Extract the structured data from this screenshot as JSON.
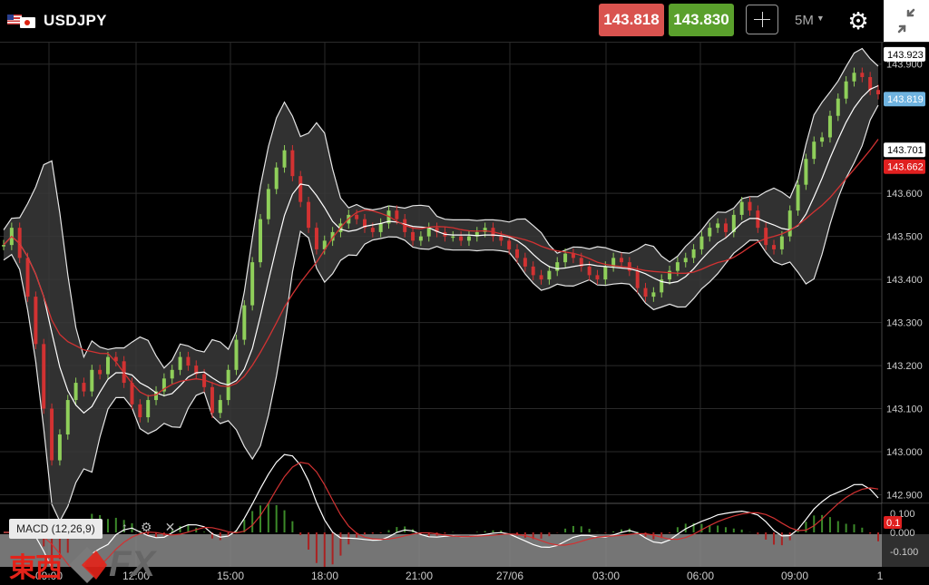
{
  "header": {
    "symbol": "USDJPY",
    "sell_price": "143.818",
    "buy_price": "143.830",
    "timeframe": "5M",
    "icons": [
      "us-flag-icon",
      "japan-flag-icon",
      "crosshair-icon",
      "settings-gear-icon",
      "collapse-icon"
    ]
  },
  "price_scale": {
    "ticks": [
      "142.900",
      "143.000",
      "143.100",
      "143.200",
      "143.300",
      "143.400",
      "143.500",
      "143.600",
      "143.900"
    ],
    "markers": [
      {
        "value": "143.923",
        "color": "#ffffff"
      },
      {
        "value": "143.819",
        "color": "#6fb3e0"
      },
      {
        "value": "143.701",
        "color": "#ffffff"
      },
      {
        "value": "143.662",
        "color": "#e02020"
      }
    ]
  },
  "time_axis": {
    "labels": [
      "15:00",
      "18:00",
      "21:00",
      "27/06",
      "03:00",
      "06:00",
      "09:00",
      "1"
    ],
    "partially_obscured_labels": [
      "09:00",
      "12:00"
    ]
  },
  "indicator": {
    "label": "MACD (12,26,9)",
    "scale": [
      "0.100",
      "0.000",
      "-0.100"
    ],
    "marker": {
      "value": "0.1",
      "color": "#e02020"
    }
  },
  "logo": {
    "kanji": "東西",
    "fx": "FX"
  },
  "chart_data": {
    "type": "candlestick",
    "ylim": [
      142.88,
      143.95
    ],
    "overlays": [
      "bollinger-bands",
      "moving-average"
    ],
    "indicator": "MACD (12,26,9)",
    "series": [
      {
        "name": "price",
        "values": [
          143.48,
          143.52,
          143.45,
          143.36,
          143.25,
          143.1,
          142.98,
          143.04,
          143.12,
          143.16,
          143.14,
          143.19,
          143.18,
          143.22,
          143.21,
          143.16,
          143.11,
          143.08,
          143.12,
          143.14,
          143.17,
          143.19,
          143.22,
          143.2,
          143.18,
          143.15,
          143.09,
          143.12,
          143.19,
          143.26,
          143.34,
          143.44,
          143.54,
          143.61,
          143.66,
          143.7,
          143.64,
          143.58,
          143.52,
          143.47,
          143.49,
          143.51,
          143.53,
          143.55,
          143.54,
          143.52,
          143.51,
          143.53,
          143.56,
          143.54,
          143.51,
          143.49,
          143.5,
          143.52,
          143.51,
          143.5,
          143.5,
          143.49,
          143.5,
          143.51,
          143.52,
          143.5,
          143.49,
          143.47,
          143.45,
          143.43,
          143.41,
          143.4,
          143.42,
          143.44,
          143.46,
          143.45,
          143.43,
          143.41,
          143.4,
          143.43,
          143.45,
          143.44,
          143.42,
          143.38,
          143.36,
          143.37,
          143.4,
          143.42,
          143.44,
          143.45,
          143.47,
          143.5,
          143.52,
          143.53,
          143.51,
          143.55,
          143.58,
          143.56,
          143.52,
          143.48,
          143.47,
          143.5,
          143.56,
          143.62,
          143.68,
          143.72,
          143.73,
          143.78,
          143.82,
          143.86,
          143.88,
          143.87,
          143.84,
          143.83
        ]
      }
    ],
    "time_labels": [
      "09:00",
      "12:00",
      "15:00",
      "18:00",
      "21:00",
      "27/06",
      "03:00",
      "06:00",
      "09:00",
      "1"
    ]
  },
  "colors": {
    "sell": "#d9534f",
    "buy": "#5aa02c",
    "ma_line": "#d23232",
    "candle_up": "#8fcf5a",
    "candle_down": "#d23232",
    "band_fill": "#3a3a3a"
  }
}
